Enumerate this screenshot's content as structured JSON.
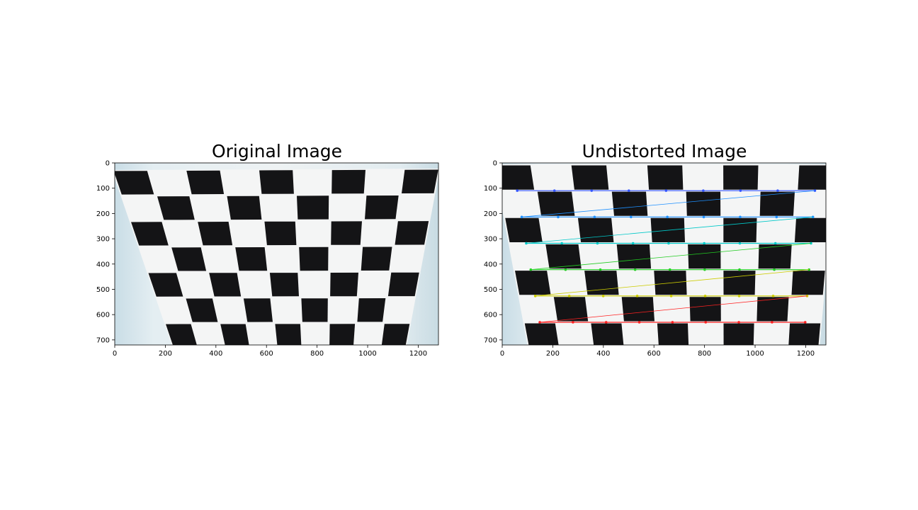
{
  "figure": {
    "panels": [
      {
        "id": "left",
        "title": "Original Image",
        "x_ticks": [
          "0",
          "200",
          "400",
          "600",
          "800",
          "1000",
          "1200"
        ],
        "y_ticks": [
          "0",
          "100",
          "200",
          "300",
          "400",
          "500",
          "600",
          "700"
        ],
        "x_range": [
          0,
          1280
        ],
        "y_range": [
          720,
          0
        ],
        "image": "checkerboard-photo-original",
        "show_corner_overlay": false
      },
      {
        "id": "right",
        "title": "Undistorted Image",
        "x_ticks": [
          "0",
          "200",
          "400",
          "600",
          "800",
          "1000",
          "1200"
        ],
        "y_ticks": [
          "0",
          "100",
          "200",
          "300",
          "400",
          "500",
          "600",
          "700"
        ],
        "x_range": [
          0,
          1280
        ],
        "y_range": [
          720,
          0
        ],
        "image": "checkerboard-photo-undistorted",
        "show_corner_overlay": true
      }
    ],
    "overlay_row_colors": [
      "#3355ff",
      "#1e90ff",
      "#00c8c8",
      "#22cc22",
      "#cccc00",
      "#ff2222"
    ]
  }
}
